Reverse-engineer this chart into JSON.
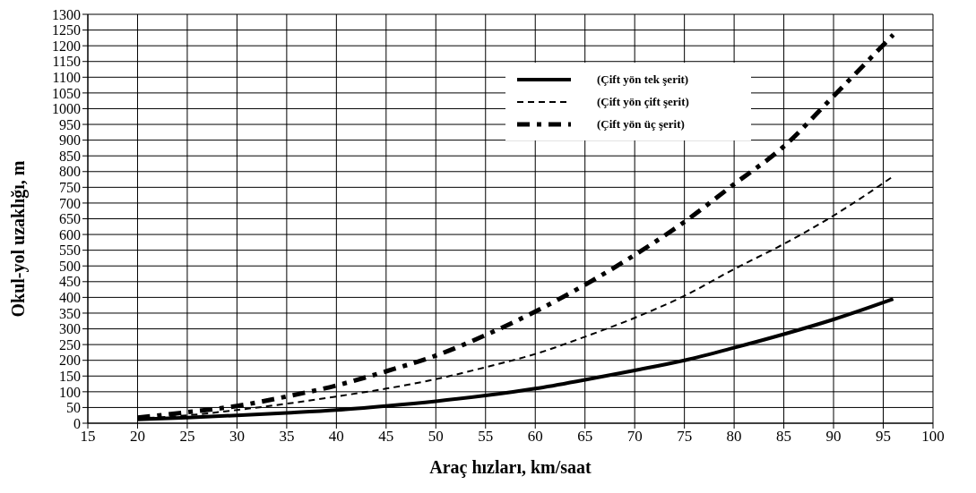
{
  "chart_data": {
    "type": "line",
    "xlabel": "Araç hızları, km/saat",
    "ylabel": "Okul-yol uzaklığı, m",
    "x": [
      20,
      25,
      30,
      35,
      40,
      45,
      50,
      55,
      60,
      65,
      70,
      75,
      80,
      85,
      90,
      96
    ],
    "series": [
      {
        "name": "(Çift yön tek şerit)",
        "color": "#000000",
        "line_style": "solid",
        "values": [
          12,
          18,
          25,
          33,
          42,
          55,
          70,
          88,
          110,
          138,
          168,
          200,
          240,
          283,
          330,
          395
        ]
      },
      {
        "name": "(Çift yön çift şerit)",
        "color": "#000000",
        "line_style": "dashed",
        "values": [
          15,
          25,
          42,
          62,
          85,
          110,
          140,
          178,
          220,
          275,
          335,
          405,
          490,
          570,
          660,
          785
        ]
      },
      {
        "name": "(Çift yön üç şerit)",
        "color": "#000000",
        "line_style": "dashed",
        "values": [
          18,
          35,
          55,
          85,
          120,
          165,
          215,
          280,
          355,
          440,
          535,
          640,
          760,
          880,
          1040,
          1235
        ]
      }
    ],
    "xlim": [
      15,
      100
    ],
    "xticks": [
      15,
      20,
      25,
      30,
      35,
      40,
      45,
      50,
      55,
      60,
      65,
      70,
      75,
      80,
      85,
      90,
      95,
      100
    ],
    "ylim": [
      0,
      1300
    ],
    "yticks": [
      0,
      50,
      100,
      150,
      200,
      250,
      300,
      350,
      400,
      450,
      500,
      550,
      600,
      650,
      700,
      750,
      800,
      850,
      900,
      950,
      1000,
      1050,
      1100,
      1150,
      1200,
      1250,
      1300
    ],
    "grid": true,
    "legend": "top right",
    "marker": "none"
  }
}
